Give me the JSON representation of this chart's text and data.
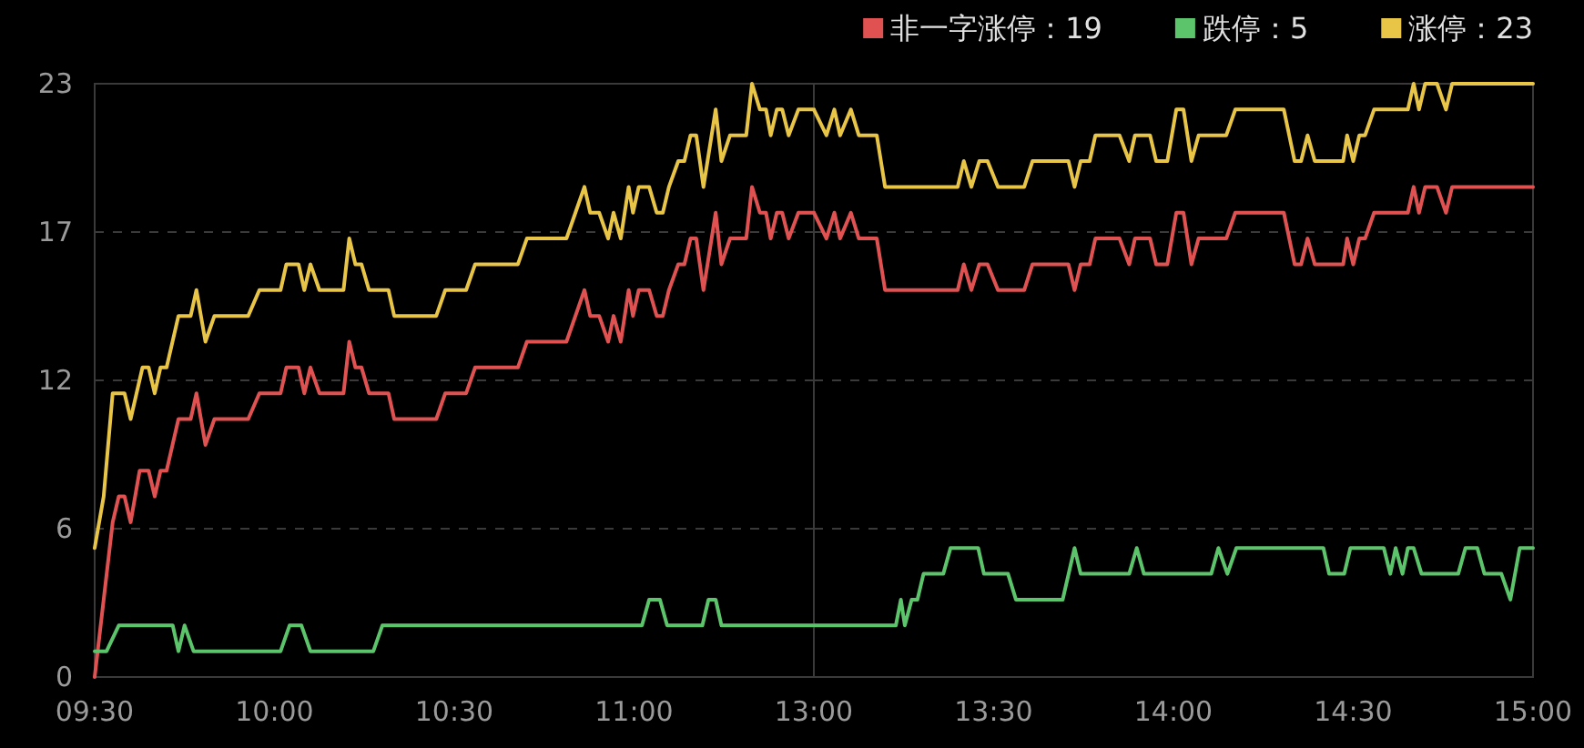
{
  "chart_data": [
    {
      "type": "line",
      "xlim": [
        9.5,
        11.5
      ],
      "ylim": [
        0,
        23
      ],
      "xticks": [
        {
          "value": 9.5,
          "label": "09:30"
        },
        {
          "value": 10,
          "label": "10:00"
        },
        {
          "value": 10.5,
          "label": "10:30"
        },
        {
          "value": 11,
          "label": "11:00"
        }
      ],
      "yticks": [
        0,
        {
          "value": 5.75,
          "label": "6"
        },
        {
          "value": 11.5,
          "label": "12"
        },
        {
          "value": 17.25,
          "label": "17"
        },
        23
      ],
      "grid": "y",
      "series": [
        {
          "color": "#e05252",
          "x": [
            9.5,
            9.525,
            9.55,
            9.567,
            9.583,
            9.6,
            9.625,
            9.65,
            9.667,
            9.683,
            9.7,
            9.733,
            9.767,
            9.783,
            9.808,
            9.833,
            9.927,
            9.958,
            10.017,
            10.033,
            10.067,
            10.083,
            10.1,
            10.125,
            10.192,
            10.208,
            10.225,
            10.242,
            10.263,
            10.317,
            10.333,
            10.45,
            10.475,
            10.533,
            10.558,
            10.677,
            10.702,
            10.812,
            10.837,
            10.862,
            10.878,
            10.903,
            10.928,
            10.943,
            10.963,
            10.985,
            10.997,
            11.013,
            11.042,
            11.063,
            11.08,
            11.097,
            11.123,
            11.14,
            11.157,
            11.173,
            11.193,
            11.227,
            11.243,
            11.267,
            11.312,
            11.328,
            11.35,
            11.367,
            11.38,
            11.397,
            11.412,
            11.43,
            11.457,
            11.5
          ],
          "values": [
            0,
            3,
            6,
            7,
            7,
            6,
            8,
            8,
            7,
            8,
            8,
            10,
            10,
            11,
            9,
            10,
            10,
            11,
            11,
            12,
            12,
            11,
            12,
            11,
            11,
            13,
            12,
            12,
            11,
            11,
            10,
            10,
            11,
            11,
            12,
            12,
            13,
            13,
            14,
            15,
            14,
            14,
            13,
            14,
            13,
            15,
            14,
            15,
            15,
            14,
            14,
            15,
            16,
            16,
            17,
            17,
            15,
            18,
            16,
            17,
            17,
            19,
            18,
            18,
            17,
            18,
            18,
            17,
            18,
            18
          ]
        },
        {
          "color": "#5cc46a",
          "x": [
            9.5,
            9.533,
            9.567,
            9.717,
            9.733,
            9.75,
            9.775,
            10.017,
            10.042,
            10.075,
            10.1,
            10.275,
            10.3,
            11.022,
            11.042,
            11.072,
            11.092,
            11.19,
            11.207,
            11.227,
            11.243,
            11.5
          ],
          "values": [
            1,
            1,
            2,
            2,
            1,
            2,
            1,
            1,
            2,
            2,
            1,
            1,
            2,
            2,
            3,
            3,
            2,
            2,
            3,
            3,
            2,
            2
          ]
        },
        {
          "color": "#e8c547",
          "x": [
            9.5,
            9.525,
            9.55,
            9.583,
            9.6,
            9.633,
            9.65,
            9.667,
            9.683,
            9.7,
            9.733,
            9.767,
            9.783,
            9.808,
            9.833,
            9.927,
            9.958,
            10.017,
            10.033,
            10.067,
            10.083,
            10.1,
            10.125,
            10.192,
            10.208,
            10.225,
            10.242,
            10.263,
            10.317,
            10.333,
            10.45,
            10.475,
            10.533,
            10.558,
            10.677,
            10.702,
            10.812,
            10.837,
            10.862,
            10.878,
            10.903,
            10.928,
            10.943,
            10.963,
            10.985,
            10.997,
            11.013,
            11.042,
            11.063,
            11.08,
            11.097,
            11.123,
            11.14,
            11.157,
            11.173,
            11.193,
            11.227,
            11.243,
            11.267,
            11.312,
            11.328,
            11.35,
            11.367,
            11.38,
            11.397,
            11.412,
            11.43,
            11.457,
            11.5
          ],
          "values": [
            5,
            7,
            11,
            11,
            10,
            12,
            12,
            11,
            12,
            12,
            14,
            14,
            15,
            13,
            14,
            14,
            15,
            15,
            16,
            16,
            15,
            16,
            15,
            15,
            17,
            16,
            16,
            15,
            15,
            14,
            14,
            15,
            15,
            16,
            16,
            17,
            17,
            18,
            19,
            18,
            18,
            17,
            18,
            17,
            19,
            18,
            19,
            19,
            18,
            18,
            19,
            20,
            20,
            21,
            21,
            19,
            22,
            20,
            21,
            21,
            23,
            22,
            22,
            21,
            22,
            22,
            21,
            22,
            22
          ]
        }
      ]
    },
    {
      "type": "line",
      "xlim": [
        13,
        15
      ],
      "ylim": [
        0,
        23
      ],
      "xticks": [
        {
          "value": 13,
          "label": "13:00"
        },
        {
          "value": 13.5,
          "label": "13:30"
        },
        {
          "value": 14,
          "label": "14:00"
        },
        {
          "value": 14.5,
          "label": "14:30"
        },
        {
          "value": 15,
          "label": "15:00"
        }
      ],
      "yticks": [
        0,
        5.75,
        11.5,
        17.25,
        23
      ],
      "tick_labels": "x",
      "grid": "y",
      "legend": "top right",
      "series": [
        {
          "name": "非一字涨停：19",
          "color": "#e05252",
          "x": [
            13,
            13.035,
            13.057,
            13.073,
            13.103,
            13.125,
            13.175,
            13.198,
            13.4,
            13.417,
            13.438,
            13.46,
            13.483,
            13.512,
            13.585,
            13.608,
            13.708,
            13.725,
            13.742,
            13.767,
            13.783,
            13.85,
            13.877,
            13.893,
            13.935,
            13.952,
            13.983,
            14.008,
            14.028,
            14.05,
            14.07,
            14.147,
            14.172,
            14.307,
            14.337,
            14.355,
            14.373,
            14.393,
            14.472,
            14.483,
            14.5,
            14.517,
            14.533,
            14.558,
            14.652,
            14.668,
            14.683,
            14.7,
            14.733,
            14.758,
            14.775,
            15
          ],
          "values": [
            18,
            17,
            18,
            17,
            18,
            17,
            17,
            15,
            15,
            16,
            15,
            16,
            16,
            15,
            15,
            16,
            16,
            15,
            16,
            16,
            17,
            17,
            16,
            17,
            17,
            16,
            16,
            18,
            18,
            16,
            17,
            17,
            18,
            18,
            16,
            16,
            17,
            16,
            16,
            17,
            16,
            17,
            17,
            18,
            18,
            19,
            18,
            19,
            19,
            18,
            19,
            19
          ]
        },
        {
          "name": "跌停：5",
          "color": "#5cc46a",
          "x": [
            13,
            13.228,
            13.242,
            13.253,
            13.272,
            13.288,
            13.305,
            13.36,
            13.38,
            13.457,
            13.473,
            13.54,
            13.562,
            13.692,
            13.725,
            13.742,
            13.877,
            13.898,
            13.918,
            14.105,
            14.125,
            14.15,
            14.175,
            14.417,
            14.433,
            14.475,
            14.492,
            14.585,
            14.603,
            14.618,
            14.637,
            14.652,
            14.668,
            14.69,
            14.792,
            14.812,
            14.845,
            14.865,
            14.912,
            14.937,
            14.963,
            15
          ],
          "values": [
            2,
            2,
            3,
            2,
            3,
            3,
            4,
            4,
            5,
            5,
            4,
            4,
            3,
            3,
            5,
            4,
            4,
            5,
            4,
            4,
            5,
            4,
            5,
            5,
            4,
            4,
            5,
            5,
            4,
            5,
            4,
            5,
            5,
            4,
            4,
            5,
            5,
            4,
            4,
            3,
            5,
            5
          ]
        },
        {
          "name": "涨停：23",
          "color": "#e8c547",
          "x": [
            13,
            13.035,
            13.057,
            13.073,
            13.103,
            13.125,
            13.175,
            13.198,
            13.4,
            13.417,
            13.438,
            13.46,
            13.483,
            13.512,
            13.585,
            13.608,
            13.708,
            13.725,
            13.742,
            13.767,
            13.783,
            13.85,
            13.877,
            13.893,
            13.935,
            13.952,
            13.983,
            14.008,
            14.028,
            14.05,
            14.07,
            14.147,
            14.172,
            14.307,
            14.337,
            14.355,
            14.373,
            14.393,
            14.472,
            14.483,
            14.5,
            14.517,
            14.533,
            14.558,
            14.652,
            14.668,
            14.683,
            14.7,
            14.733,
            14.758,
            14.775,
            15
          ],
          "values": [
            22,
            21,
            22,
            21,
            22,
            21,
            21,
            19,
            19,
            20,
            19,
            20,
            20,
            19,
            19,
            20,
            20,
            19,
            20,
            20,
            21,
            21,
            20,
            21,
            21,
            20,
            20,
            22,
            22,
            20,
            21,
            21,
            22,
            22,
            20,
            20,
            21,
            20,
            20,
            21,
            20,
            21,
            21,
            22,
            22,
            23,
            22,
            23,
            23,
            22,
            23,
            23
          ]
        }
      ]
    }
  ]
}
